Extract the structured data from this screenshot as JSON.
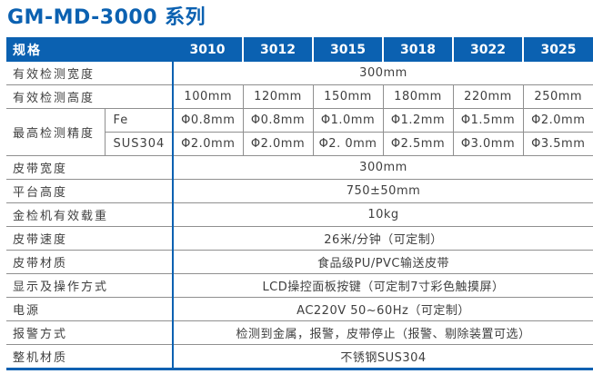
{
  "page": {
    "title": "GM-MD-3000 系列"
  },
  "colors": {
    "accent_blue": "#0b61b1",
    "grid_gray": "#8f8f8f",
    "header_text": "#ffffff",
    "body_text": "#3f3f3f"
  },
  "table": {
    "header": {
      "spec": "规格",
      "models": [
        "3010",
        "3012",
        "3015",
        "3018",
        "3022",
        "3025"
      ]
    },
    "width_row": {
      "label": "有效检测宽度",
      "value": "300mm"
    },
    "height_row": {
      "label": "有效检测高度",
      "values": [
        "100mm",
        "120mm",
        "150mm",
        "180mm",
        "220mm",
        "250mm"
      ]
    },
    "precision": {
      "label": "最高检测精度",
      "fe": {
        "label": "Fe",
        "values": [
          "Φ0.8mm",
          "Φ0.8mm",
          "Φ1.0mm",
          "Φ1.2mm",
          "Φ1.5mm",
          "Φ2.0mm"
        ]
      },
      "sus": {
        "label": "SUS304",
        "values": [
          "Φ2.0mm",
          "Φ2.0mm",
          "Φ2. 0mm",
          "Φ2.5mm",
          "Φ3.0mm",
          "Φ3.5mm"
        ]
      }
    },
    "span_rows": [
      {
        "label": "皮带宽度",
        "value": "300mm"
      },
      {
        "label": "平台高度",
        "value": "750±50mm"
      },
      {
        "label": "金检机有效载重",
        "value": "10kg"
      },
      {
        "label": "皮带速度",
        "value": "26米/分钟（可定制）"
      },
      {
        "label": "皮带材质",
        "value": "食品级PU/PVC输送皮带"
      },
      {
        "label": "显示及操作方式",
        "value": "LCD操控面板按键（可定制7寸彩色触摸屏）"
      },
      {
        "label": "电源",
        "value": "AC220V 50~60Hz（可定制）"
      },
      {
        "label": "报警方式",
        "value": "检测到金属，报警，皮带停止（报警、剔除装置可选）"
      },
      {
        "label": "整机材质",
        "value": "不锈钢SUS304"
      }
    ]
  }
}
